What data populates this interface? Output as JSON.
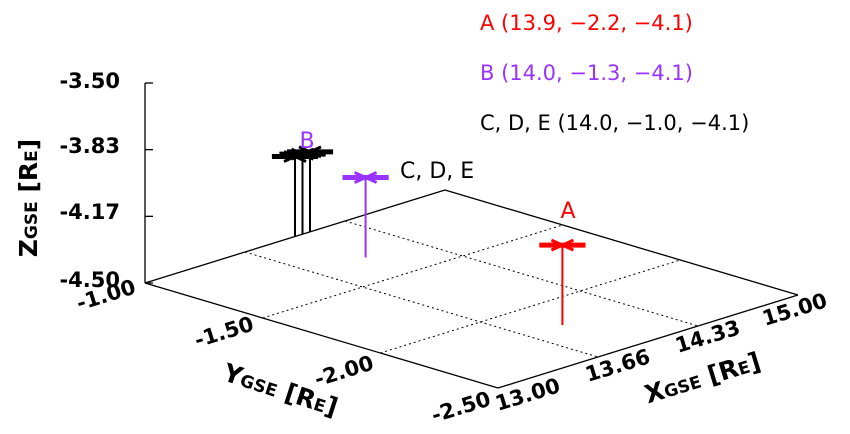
{
  "chart_data": {
    "type": "scatter",
    "projection": "3d",
    "x_axis": {
      "label": "X",
      "subscript": "GSE",
      "unit_open": " [R",
      "unit_sub": "E",
      "unit_close": "]",
      "ticks": [
        "13.00",
        "13.66",
        "14.33",
        "15.00"
      ],
      "range": [
        13.0,
        15.0
      ]
    },
    "y_axis": {
      "label": "Y",
      "subscript": "GSE",
      "unit_open": " [R",
      "unit_sub": "E",
      "unit_close": "]",
      "ticks": [
        "-1.00",
        "-1.50",
        "-2.00",
        "-2.50"
      ],
      "range": [
        -1.0,
        -2.5
      ]
    },
    "z_axis": {
      "label": "Z",
      "subscript": "GSE",
      "unit_open": " [R",
      "unit_sub": "E",
      "unit_close": "]",
      "ticks": [
        "-3.50",
        "-3.83",
        "-4.17",
        "-4.50"
      ],
      "range": [
        -4.5,
        -3.5
      ]
    },
    "grid": true,
    "series": [
      {
        "name": "A",
        "color": "#ff0000",
        "points": [
          {
            "x": 13.9,
            "y": -2.2,
            "z": -4.1
          }
        ]
      },
      {
        "name": "B",
        "color": "#9933ff",
        "points": [
          {
            "x": 14.0,
            "y": -1.3,
            "z": -4.1
          }
        ]
      },
      {
        "name": "C, D, E",
        "color": "#000000",
        "points": [
          {
            "x": 14.0,
            "y": -1.0,
            "z": -4.1
          },
          {
            "x": 14.05,
            "y": -1.0,
            "z": -4.1
          },
          {
            "x": 14.1,
            "y": -1.0,
            "z": -4.1
          }
        ]
      }
    ],
    "legend": [
      {
        "text": "A (13.9, −2.2, −4.1)",
        "color": "#ff0000"
      },
      {
        "text": "B (14.0, −1.3, −4.1)",
        "color": "#9933ff"
      },
      {
        "text": "C, D, E (14.0, −1.0, −4.1)",
        "color": "#000000"
      }
    ],
    "legend_position": "top-right"
  }
}
